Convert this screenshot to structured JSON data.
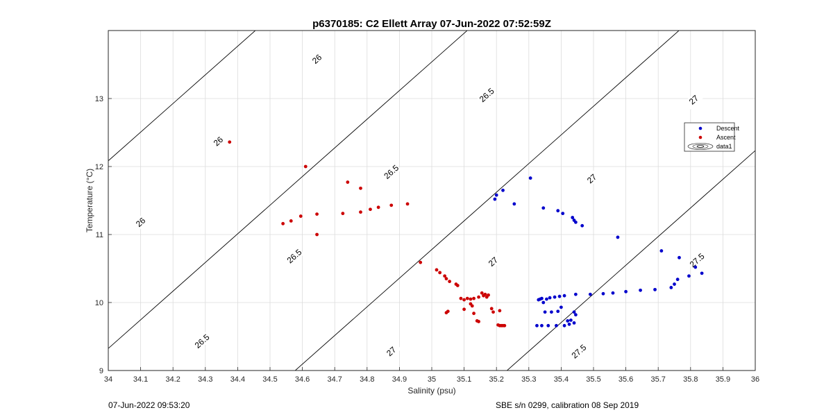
{
  "chart_data": {
    "type": "scatter",
    "title": "p6370185: C2 Ellett Array 07-Jun-2022 07:52:59Z",
    "xlabel": "Salinity (psu)",
    "ylabel": "Temperature (°C)",
    "xlim": [
      34,
      36
    ],
    "ylim": [
      9,
      14
    ],
    "xticks": [
      "34",
      "34.1",
      "34.2",
      "34.3",
      "34.4",
      "34.5",
      "34.6",
      "34.7",
      "34.8",
      "34.9",
      "35",
      "35.1",
      "35.2",
      "35.3",
      "35.4",
      "35.5",
      "35.6",
      "35.7",
      "35.8",
      "35.9",
      "36"
    ],
    "yticks": [
      "9",
      "10",
      "11",
      "12",
      "13"
    ],
    "grid": true,
    "legend_position": "right",
    "legend": [
      "Descent",
      "Ascent",
      "data1"
    ],
    "series": [
      {
        "name": "Descent",
        "color": "#0000cc",
        "points": [
          [
            35.195,
            11.52
          ],
          [
            35.2,
            11.58
          ],
          [
            35.22,
            11.65
          ],
          [
            35.255,
            11.45
          ],
          [
            35.305,
            11.83
          ],
          [
            35.345,
            11.39
          ],
          [
            35.39,
            11.35
          ],
          [
            35.405,
            11.31
          ],
          [
            35.435,
            11.25
          ],
          [
            35.44,
            11.21
          ],
          [
            35.445,
            11.18
          ],
          [
            35.465,
            11.13
          ],
          [
            35.575,
            10.96
          ],
          [
            35.71,
            10.76
          ],
          [
            35.765,
            10.66
          ],
          [
            35.33,
            10.04
          ],
          [
            35.335,
            10.05
          ],
          [
            35.34,
            10.06
          ],
          [
            35.345,
            10.0
          ],
          [
            35.355,
            10.05
          ],
          [
            35.365,
            10.07
          ],
          [
            35.38,
            10.08
          ],
          [
            35.395,
            10.09
          ],
          [
            35.41,
            10.1
          ],
          [
            35.445,
            10.12
          ],
          [
            35.49,
            10.12
          ],
          [
            35.53,
            10.13
          ],
          [
            35.56,
            10.14
          ],
          [
            35.6,
            10.16
          ],
          [
            35.645,
            10.18
          ],
          [
            35.69,
            10.19
          ],
          [
            35.74,
            10.22
          ],
          [
            35.75,
            10.27
          ],
          [
            35.76,
            10.34
          ],
          [
            35.795,
            10.39
          ],
          [
            35.835,
            10.43
          ],
          [
            35.815,
            10.52
          ],
          [
            35.35,
            9.86
          ],
          [
            35.37,
            9.86
          ],
          [
            35.39,
            9.87
          ],
          [
            35.4,
            9.93
          ],
          [
            35.44,
            9.86
          ],
          [
            35.445,
            9.82
          ],
          [
            35.42,
            9.73
          ],
          [
            35.43,
            9.74
          ],
          [
            35.425,
            9.68
          ],
          [
            35.44,
            9.7
          ],
          [
            35.325,
            9.66
          ],
          [
            35.34,
            9.66
          ],
          [
            35.36,
            9.66
          ],
          [
            35.385,
            9.66
          ],
          [
            35.41,
            9.66
          ]
        ]
      },
      {
        "name": "Ascent",
        "color": "#cc0000",
        "points": [
          [
            34.375,
            12.36
          ],
          [
            34.61,
            12.0
          ],
          [
            34.74,
            11.77
          ],
          [
            34.78,
            11.68
          ],
          [
            34.54,
            11.16
          ],
          [
            34.565,
            11.2
          ],
          [
            34.595,
            11.27
          ],
          [
            34.645,
            11.3
          ],
          [
            34.725,
            11.31
          ],
          [
            34.78,
            11.33
          ],
          [
            34.81,
            11.37
          ],
          [
            34.835,
            11.4
          ],
          [
            34.875,
            11.43
          ],
          [
            34.925,
            11.45
          ],
          [
            34.645,
            11.0
          ],
          [
            34.965,
            10.59
          ],
          [
            35.015,
            10.48
          ],
          [
            35.025,
            10.44
          ],
          [
            35.04,
            10.39
          ],
          [
            35.045,
            10.35
          ],
          [
            35.055,
            10.31
          ],
          [
            35.075,
            10.27
          ],
          [
            35.08,
            10.25
          ],
          [
            35.09,
            10.06
          ],
          [
            35.1,
            10.04
          ],
          [
            35.11,
            10.06
          ],
          [
            35.12,
            10.05
          ],
          [
            35.13,
            10.06
          ],
          [
            35.145,
            10.08
          ],
          [
            35.155,
            10.14
          ],
          [
            35.16,
            10.1
          ],
          [
            35.165,
            10.12
          ],
          [
            35.17,
            10.08
          ],
          [
            35.175,
            10.11
          ],
          [
            35.12,
            9.98
          ],
          [
            35.125,
            9.95
          ],
          [
            35.1,
            9.9
          ],
          [
            35.13,
            9.84
          ],
          [
            35.14,
            9.73
          ],
          [
            35.145,
            9.72
          ],
          [
            35.05,
            9.87
          ],
          [
            35.045,
            9.85
          ],
          [
            35.185,
            9.91
          ],
          [
            35.19,
            9.86
          ],
          [
            35.21,
            9.88
          ],
          [
            35.205,
            9.67
          ],
          [
            35.21,
            9.66
          ],
          [
            35.215,
            9.66
          ],
          [
            35.22,
            9.66
          ],
          [
            35.225,
            9.66
          ]
        ]
      }
    ],
    "isopycnals": [
      {
        "value": "26",
        "sigma": 26.0,
        "labels": [
          [
            34.1,
            11.18
          ],
          [
            34.34,
            12.37
          ],
          [
            34.645,
            13.58
          ]
        ]
      },
      {
        "value": "26.5",
        "sigma": 26.5,
        "labels": [
          [
            34.29,
            9.43
          ],
          [
            34.575,
            10.68
          ],
          [
            34.875,
            11.92
          ],
          [
            35.17,
            13.05
          ]
        ]
      },
      {
        "value": "27",
        "sigma": 27.0,
        "labels": [
          [
            34.875,
            9.28
          ],
          [
            35.19,
            10.6
          ],
          [
            35.495,
            11.82
          ],
          [
            35.81,
            12.98
          ]
        ]
      },
      {
        "value": "27.5",
        "sigma": 27.5,
        "labels": [
          [
            35.455,
            9.28
          ],
          [
            35.82,
            10.62
          ]
        ]
      }
    ]
  },
  "footer": {
    "left": "07-Jun-2022 09:53:20",
    "right": "SBE s/n 0299, calibration 08 Sep 2019"
  },
  "colors": {
    "descent": "#0000cc",
    "ascent": "#cc0000",
    "contour": "#000000",
    "grid": "#dcdcdc"
  }
}
